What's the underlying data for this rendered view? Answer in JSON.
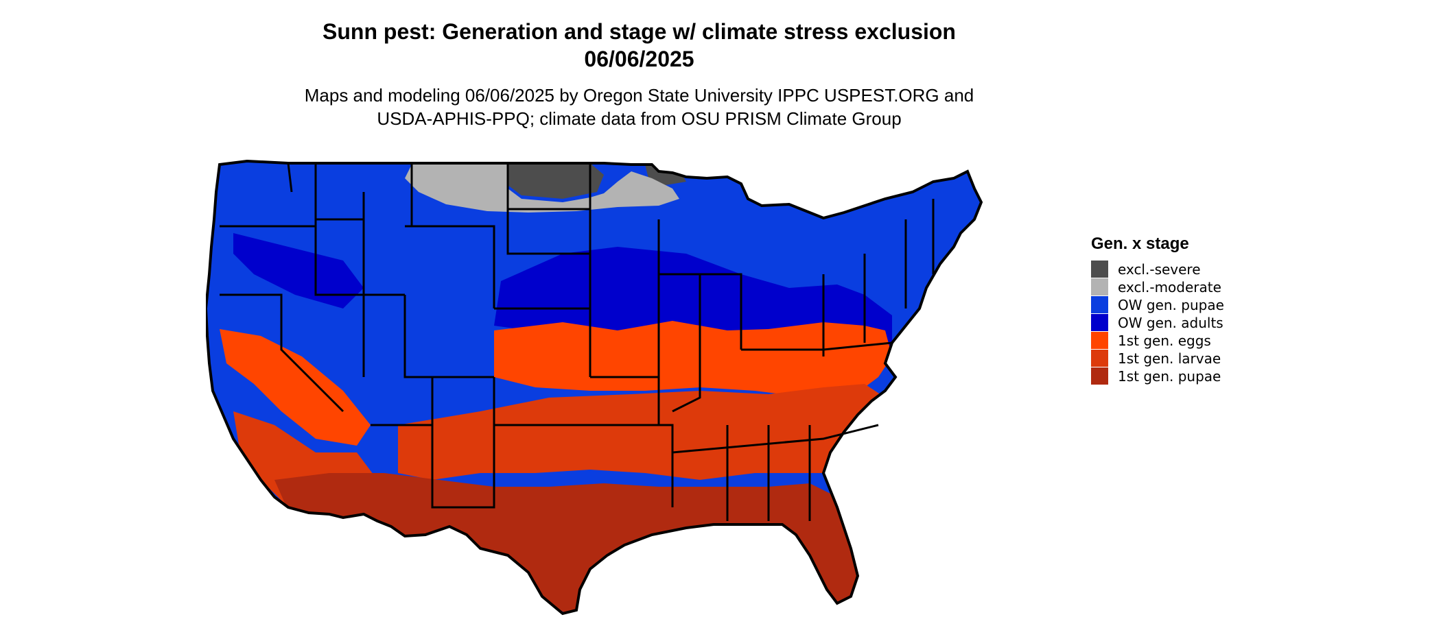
{
  "title": {
    "line1": "Sunn pest: Generation and stage w/ climate stress exclusion",
    "line2": "06/06/2025"
  },
  "subtitle": {
    "line1": "Maps and modeling 06/06/2025 by Oregon State University IPPC USPEST.ORG and",
    "line2": "USDA-APHIS-PPQ; climate data from OSU PRISM Climate Group"
  },
  "legend": {
    "title": "Gen. x stage",
    "items": [
      {
        "label": "excl.-severe",
        "color": "#4d4d4d"
      },
      {
        "label": "excl.-moderate",
        "color": "#b3b3b3"
      },
      {
        "label": "OW gen. pupae",
        "color": "#0a3ee0"
      },
      {
        "label": "OW gen. adults",
        "color": "#0000cc"
      },
      {
        "label": "1st gen. eggs",
        "color": "#ff4500"
      },
      {
        "label": "1st gen. larvae",
        "color": "#dd3a0b"
      },
      {
        "label": "1st gen. pupae",
        "color": "#b02a10"
      }
    ]
  },
  "map": {
    "region": "Contiguous United States",
    "border_color": "#000000"
  }
}
